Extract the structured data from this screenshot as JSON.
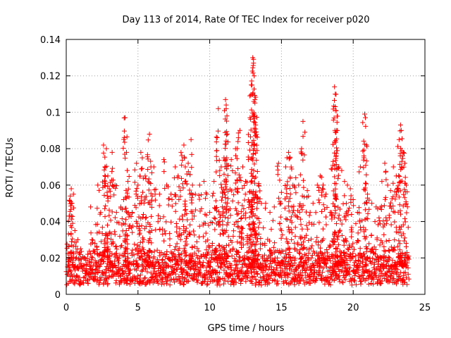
{
  "chart_data": {
    "type": "scatter",
    "title": "Day 113 of 2014, Rate Of TEC Index for receiver p020",
    "xlabel": "GPS time / hours",
    "ylabel": "ROTI / TECUs",
    "xlim": [
      0,
      25
    ],
    "ylim": [
      0,
      0.14
    ],
    "x_ticks": [
      "0",
      "5",
      "10",
      "15",
      "20",
      "25"
    ],
    "y_ticks": [
      "0",
      "0.02",
      "0.04",
      "0.06",
      "0.08",
      "0.1",
      "0.12",
      "0.14"
    ],
    "x_tick_values": [
      0,
      5,
      10,
      15,
      20,
      25
    ],
    "y_tick_values": [
      0,
      0.02,
      0.04,
      0.06,
      0.08,
      0.1,
      0.12,
      0.14
    ],
    "grid": true,
    "marker": "plus",
    "color": "#ff0000",
    "baseline_range": [
      0.005,
      0.02
    ],
    "data_x_range": [
      0,
      23.9
    ],
    "points": [
      [
        0.2,
        0.043
      ],
      [
        0.3,
        0.051
      ],
      [
        0.35,
        0.058
      ],
      [
        0.4,
        0.05
      ],
      [
        0.5,
        0.055
      ],
      [
        0.6,
        0.035
      ],
      [
        0.8,
        0.03
      ],
      [
        1.0,
        0.025
      ],
      [
        1.5,
        0.022
      ],
      [
        1.7,
        0.048
      ],
      [
        1.8,
        0.03
      ],
      [
        2.0,
        0.028
      ],
      [
        2.2,
        0.06
      ],
      [
        2.4,
        0.045
      ],
      [
        2.6,
        0.082
      ],
      [
        2.7,
        0.07
      ],
      [
        2.8,
        0.08
      ],
      [
        2.9,
        0.065
      ],
      [
        3.0,
        0.058
      ],
      [
        3.2,
        0.078
      ],
      [
        3.4,
        0.06
      ],
      [
        3.5,
        0.045
      ],
      [
        3.8,
        0.048
      ],
      [
        4.0,
        0.052
      ],
      [
        4.1,
        0.097
      ],
      [
        4.2,
        0.078
      ],
      [
        4.25,
        0.068
      ],
      [
        4.3,
        0.062
      ],
      [
        4.6,
        0.045
      ],
      [
        4.9,
        0.072
      ],
      [
        5.0,
        0.06
      ],
      [
        5.2,
        0.078
      ],
      [
        5.3,
        0.075
      ],
      [
        5.5,
        0.065
      ],
      [
        5.7,
        0.062
      ],
      [
        5.8,
        0.088
      ],
      [
        5.9,
        0.07
      ],
      [
        6.1,
        0.07
      ],
      [
        6.5,
        0.055
      ],
      [
        6.8,
        0.074
      ],
      [
        7.0,
        0.06
      ],
      [
        7.3,
        0.055
      ],
      [
        7.6,
        0.07
      ],
      [
        7.8,
        0.065
      ],
      [
        8.0,
        0.078
      ],
      [
        8.2,
        0.082
      ],
      [
        8.3,
        0.07
      ],
      [
        8.5,
        0.072
      ],
      [
        8.7,
        0.085
      ],
      [
        8.8,
        0.06
      ],
      [
        9.0,
        0.055
      ],
      [
        9.3,
        0.06
      ],
      [
        9.6,
        0.062
      ],
      [
        9.8,
        0.055
      ],
      [
        10.0,
        0.045
      ],
      [
        10.3,
        0.062
      ],
      [
        10.5,
        0.079
      ],
      [
        10.6,
        0.102
      ],
      [
        10.8,
        0.07
      ],
      [
        11.0,
        0.066
      ],
      [
        11.1,
        0.107
      ],
      [
        11.15,
        0.104
      ],
      [
        11.2,
        0.098
      ],
      [
        11.5,
        0.074
      ],
      [
        11.8,
        0.08
      ],
      [
        12.0,
        0.086
      ],
      [
        12.1,
        0.09
      ],
      [
        12.3,
        0.07
      ],
      [
        12.5,
        0.062
      ],
      [
        12.7,
        0.074
      ],
      [
        12.8,
        0.109
      ],
      [
        12.9,
        0.115
      ],
      [
        13.0,
        0.13
      ],
      [
        13.05,
        0.127
      ],
      [
        13.1,
        0.12
      ],
      [
        13.15,
        0.107
      ],
      [
        13.2,
        0.093
      ],
      [
        13.3,
        0.079
      ],
      [
        13.4,
        0.06
      ],
      [
        13.6,
        0.05
      ],
      [
        13.9,
        0.05
      ],
      [
        14.2,
        0.045
      ],
      [
        14.5,
        0.048
      ],
      [
        14.8,
        0.072
      ],
      [
        15.0,
        0.056
      ],
      [
        15.3,
        0.07
      ],
      [
        15.5,
        0.078
      ],
      [
        15.6,
        0.075
      ],
      [
        15.8,
        0.06
      ],
      [
        16.0,
        0.064
      ],
      [
        16.2,
        0.06
      ],
      [
        16.4,
        0.08
      ],
      [
        16.5,
        0.095
      ],
      [
        16.8,
        0.057
      ],
      [
        17.0,
        0.045
      ],
      [
        17.2,
        0.05
      ],
      [
        17.5,
        0.06
      ],
      [
        17.7,
        0.065
      ],
      [
        17.9,
        0.06
      ],
      [
        18.1,
        0.055
      ],
      [
        18.4,
        0.045
      ],
      [
        18.6,
        0.073
      ],
      [
        18.7,
        0.114
      ],
      [
        18.75,
        0.11
      ],
      [
        18.8,
        0.101
      ],
      [
        18.85,
        0.09
      ],
      [
        19.0,
        0.07
      ],
      [
        19.2,
        0.068
      ],
      [
        19.4,
        0.062
      ],
      [
        19.6,
        0.06
      ],
      [
        19.8,
        0.058
      ],
      [
        20.0,
        0.052
      ],
      [
        20.3,
        0.045
      ],
      [
        20.5,
        0.07
      ],
      [
        20.8,
        0.099
      ],
      [
        20.85,
        0.097
      ],
      [
        21.0,
        0.055
      ],
      [
        21.3,
        0.05
      ],
      [
        21.6,
        0.048
      ],
      [
        21.8,
        0.042
      ],
      [
        22.0,
        0.062
      ],
      [
        22.2,
        0.072
      ],
      [
        22.4,
        0.06
      ],
      [
        22.6,
        0.057
      ],
      [
        22.8,
        0.07
      ],
      [
        23.0,
        0.065
      ],
      [
        23.2,
        0.085
      ],
      [
        23.3,
        0.093
      ],
      [
        23.35,
        0.09
      ],
      [
        23.5,
        0.078
      ],
      [
        23.6,
        0.072
      ],
      [
        23.7,
        0.06
      ]
    ]
  }
}
